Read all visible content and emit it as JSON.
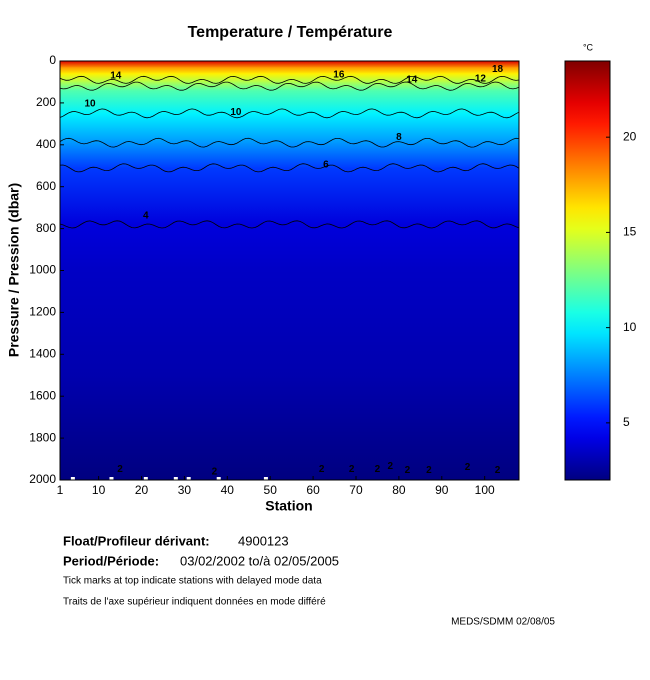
{
  "chart_data": {
    "type": "depth-section",
    "title": "Temperature / Température",
    "xlabel": "Station",
    "ylabel": "Pressure / Pression (dbar)",
    "xlim": [
      1,
      108
    ],
    "xticks": [
      1,
      10,
      20,
      30,
      40,
      50,
      60,
      70,
      80,
      90,
      100
    ],
    "ylim": [
      2000,
      0
    ],
    "yticks": [
      0,
      200,
      400,
      600,
      800,
      1000,
      1200,
      1400,
      1600,
      1800,
      2000
    ],
    "colorbar": {
      "unit": "°C",
      "clim": [
        2,
        24
      ],
      "ticks": [
        5,
        10,
        15,
        20
      ]
    },
    "profile": {
      "pressure": [
        0,
        30,
        60,
        100,
        140,
        250,
        390,
        510,
        780,
        1000,
        1500,
        1950,
        2000
      ],
      "temperature": [
        22,
        18,
        16,
        14,
        12,
        10,
        8,
        6,
        4,
        3.5,
        3,
        2.1,
        2
      ]
    },
    "contours": [
      {
        "level": 14,
        "pressure": 90
      },
      {
        "level": 12,
        "pressure": 120
      },
      {
        "level": 10,
        "pressure": 250
      },
      {
        "level": 8,
        "pressure": 390
      },
      {
        "level": 6,
        "pressure": 510
      },
      {
        "level": 4,
        "pressure": 780
      }
    ],
    "contour_labels": [
      {
        "level": 10,
        "station": 8,
        "pressure": 205
      },
      {
        "level": 10,
        "station": 42,
        "pressure": 245
      },
      {
        "level": 8,
        "station": 80,
        "pressure": 365
      },
      {
        "level": 6,
        "station": 63,
        "pressure": 495
      },
      {
        "level": 4,
        "station": 21,
        "pressure": 740
      },
      {
        "level": 14,
        "station": 14,
        "pressure": 70
      },
      {
        "level": 16,
        "station": 66,
        "pressure": 65
      },
      {
        "level": 14,
        "station": 83,
        "pressure": 90
      },
      {
        "level": 18,
        "station": 103,
        "pressure": 40
      },
      {
        "level": 12,
        "station": 99,
        "pressure": 85
      },
      {
        "level": 2,
        "station": 15,
        "pressure": 1950
      },
      {
        "level": 2,
        "station": 37,
        "pressure": 1960
      },
      {
        "level": 2,
        "station": 62,
        "pressure": 1950
      },
      {
        "level": 2,
        "station": 69,
        "pressure": 1950
      },
      {
        "level": 2,
        "station": 75,
        "pressure": 1950
      },
      {
        "level": 2,
        "station": 78,
        "pressure": 1935
      },
      {
        "level": 2,
        "station": 82,
        "pressure": 1955
      },
      {
        "level": 2,
        "station": 87,
        "pressure": 1955
      },
      {
        "level": 2,
        "station": 96,
        "pressure": 1940
      },
      {
        "level": 2,
        "station": 103,
        "pressure": 1955
      }
    ],
    "delayed_mode_stations": [
      4,
      13,
      21,
      28,
      31,
      38,
      49
    ]
  },
  "info": {
    "float_label": "Float/Profileur dérivant:",
    "float_id": "4900123",
    "period_label": "Period/Période:",
    "period": "03/02/2002  to/à  02/05/2005",
    "note_en": "Tick marks at top indicate stations with delayed mode data",
    "note_fr": "Traits de l'axe supérieur indiquent données en mode différé",
    "credit": "MEDS/SDMM  02/08/05"
  }
}
